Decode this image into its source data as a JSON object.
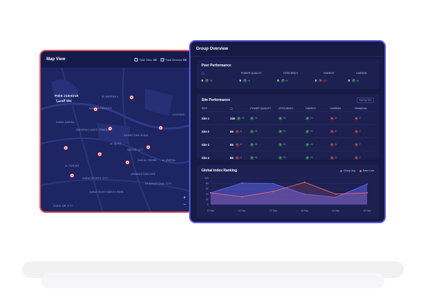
{
  "map": {
    "title": "Map View",
    "total_sites_label": "Total Sites",
    "total_sites_value": "15",
    "total_devices_label": "Total Devices",
    "total_devices_value": "15",
    "places": [
      {
        "name": "Palm Jumeirah",
        "big": true
      },
      {
        "name": "نخلة الجميرا",
        "big": true
      },
      {
        "name": "AL BARSHA 1"
      },
      {
        "name": "BARSHA HEIGHTS"
      },
      {
        "name": "DUBAI MARINA"
      },
      {
        "name": "JUMEIRAH LAKES TOWERS"
      },
      {
        "name": "DOWNTOWN DUBAI"
      },
      {
        "name": "AL QUOZ"
      },
      {
        "name": "MOTOR CITY"
      },
      {
        "name": "NAD AL SHEBA"
      },
      {
        "name": "AL FURJAN"
      },
      {
        "name": "AL WARQA"
      },
      {
        "name": "ARABIAN RANCHES"
      },
      {
        "name": "DUBAI INVESTMENTS PARK"
      },
      {
        "name": "DUBAI AIR CITY"
      },
      {
        "name": "LEGENDS"
      },
      {
        "name": "INTERNATIONAL CITY"
      },
      {
        "name": "DUBAI SPORTS CITY"
      }
    ],
    "zoom_in": "+",
    "zoom_out": "−"
  },
  "group": {
    "title": "Group Overview",
    "peer": {
      "title": "Peer Performance",
      "headers": [
        "",
        "POWER QUALITY",
        "EFFICIENCY",
        "ENERGY",
        "CARBON"
      ],
      "values": [
        {
          "num": "6",
          "delta": "+5",
          "dir": "up"
        },
        {
          "num": "6",
          "delta": "+5",
          "dir": "up"
        },
        {
          "num": "6",
          "delta": "+5",
          "dir": "up"
        },
        {
          "num": "5",
          "delta": "-10",
          "dir": "dn"
        },
        {
          "num": "6",
          "delta": "+5",
          "dir": "up"
        }
      ]
    },
    "sites": {
      "title": "Site Performance",
      "sort_label": "Sort by Tier",
      "headers": [
        "SITE",
        "",
        "POWER QUALITY",
        "EFFICIENCY",
        "ENERGY",
        "CARBON",
        "FINANCIAL"
      ],
      "rows": [
        {
          "site": "Site 1",
          "score": "100",
          "score_delta": "+5",
          "score_dir": "up",
          "cells": [
            [
              "+5",
              "up"
            ],
            [
              "+5",
              "up"
            ],
            [
              "+5",
              "up"
            ],
            [
              "-5",
              "dn"
            ],
            [
              "-7",
              "dn"
            ]
          ]
        },
        {
          "site": "Site 2",
          "score": "86",
          "score_delta": "-5",
          "score_dir": "dn",
          "cells": [
            [
              "+5",
              "up"
            ],
            [
              "+5",
              "up"
            ],
            [
              "+5",
              "up"
            ],
            [
              "-5",
              "dn"
            ],
            [
              "-7",
              "dn"
            ]
          ]
        },
        {
          "site": "Site 3",
          "score": "86",
          "score_delta": "-5",
          "score_dir": "dn",
          "cells": [
            [
              "+5",
              "up"
            ],
            [
              "+5",
              "up"
            ],
            [
              "+5",
              "up"
            ],
            [
              "-5",
              "dn"
            ],
            [
              "-7",
              "dn"
            ]
          ]
        },
        {
          "site": "Site 4",
          "score": "86",
          "score_delta": "-5",
          "score_dir": "dn",
          "cells": [
            [
              "+5",
              "up"
            ],
            [
              "+5",
              "up"
            ],
            [
              "+5",
              "up"
            ],
            [
              "-5",
              "dn"
            ],
            [
              "-7",
              "dn"
            ]
          ]
        }
      ]
    },
    "ranking": {
      "title": "Global Index Ranking",
      "legend_avg": "Group Avg",
      "legend_base": "Base Line",
      "colors": {
        "avg": "#6b6cff",
        "base": "#ff6b72"
      }
    }
  },
  "chart_data": {
    "type": "line",
    "title": "Global Index Ranking",
    "x": [
      "13 Sep",
      "14 Sep",
      "17 Sep",
      "18 Sep",
      "19 Sep",
      "20 Sep"
    ],
    "ylim": [
      0,
      100
    ],
    "y_ticks": [
      "100",
      "80",
      "60",
      "40",
      "20",
      "0"
    ],
    "series": [
      {
        "name": "Group Avg",
        "values": [
          45,
          82,
          80,
          40,
          28,
          78
        ]
      },
      {
        "name": "Base Line",
        "values": [
          45,
          30,
          50,
          85,
          40,
          45
        ]
      }
    ],
    "legend": "top-right",
    "grid": true
  }
}
